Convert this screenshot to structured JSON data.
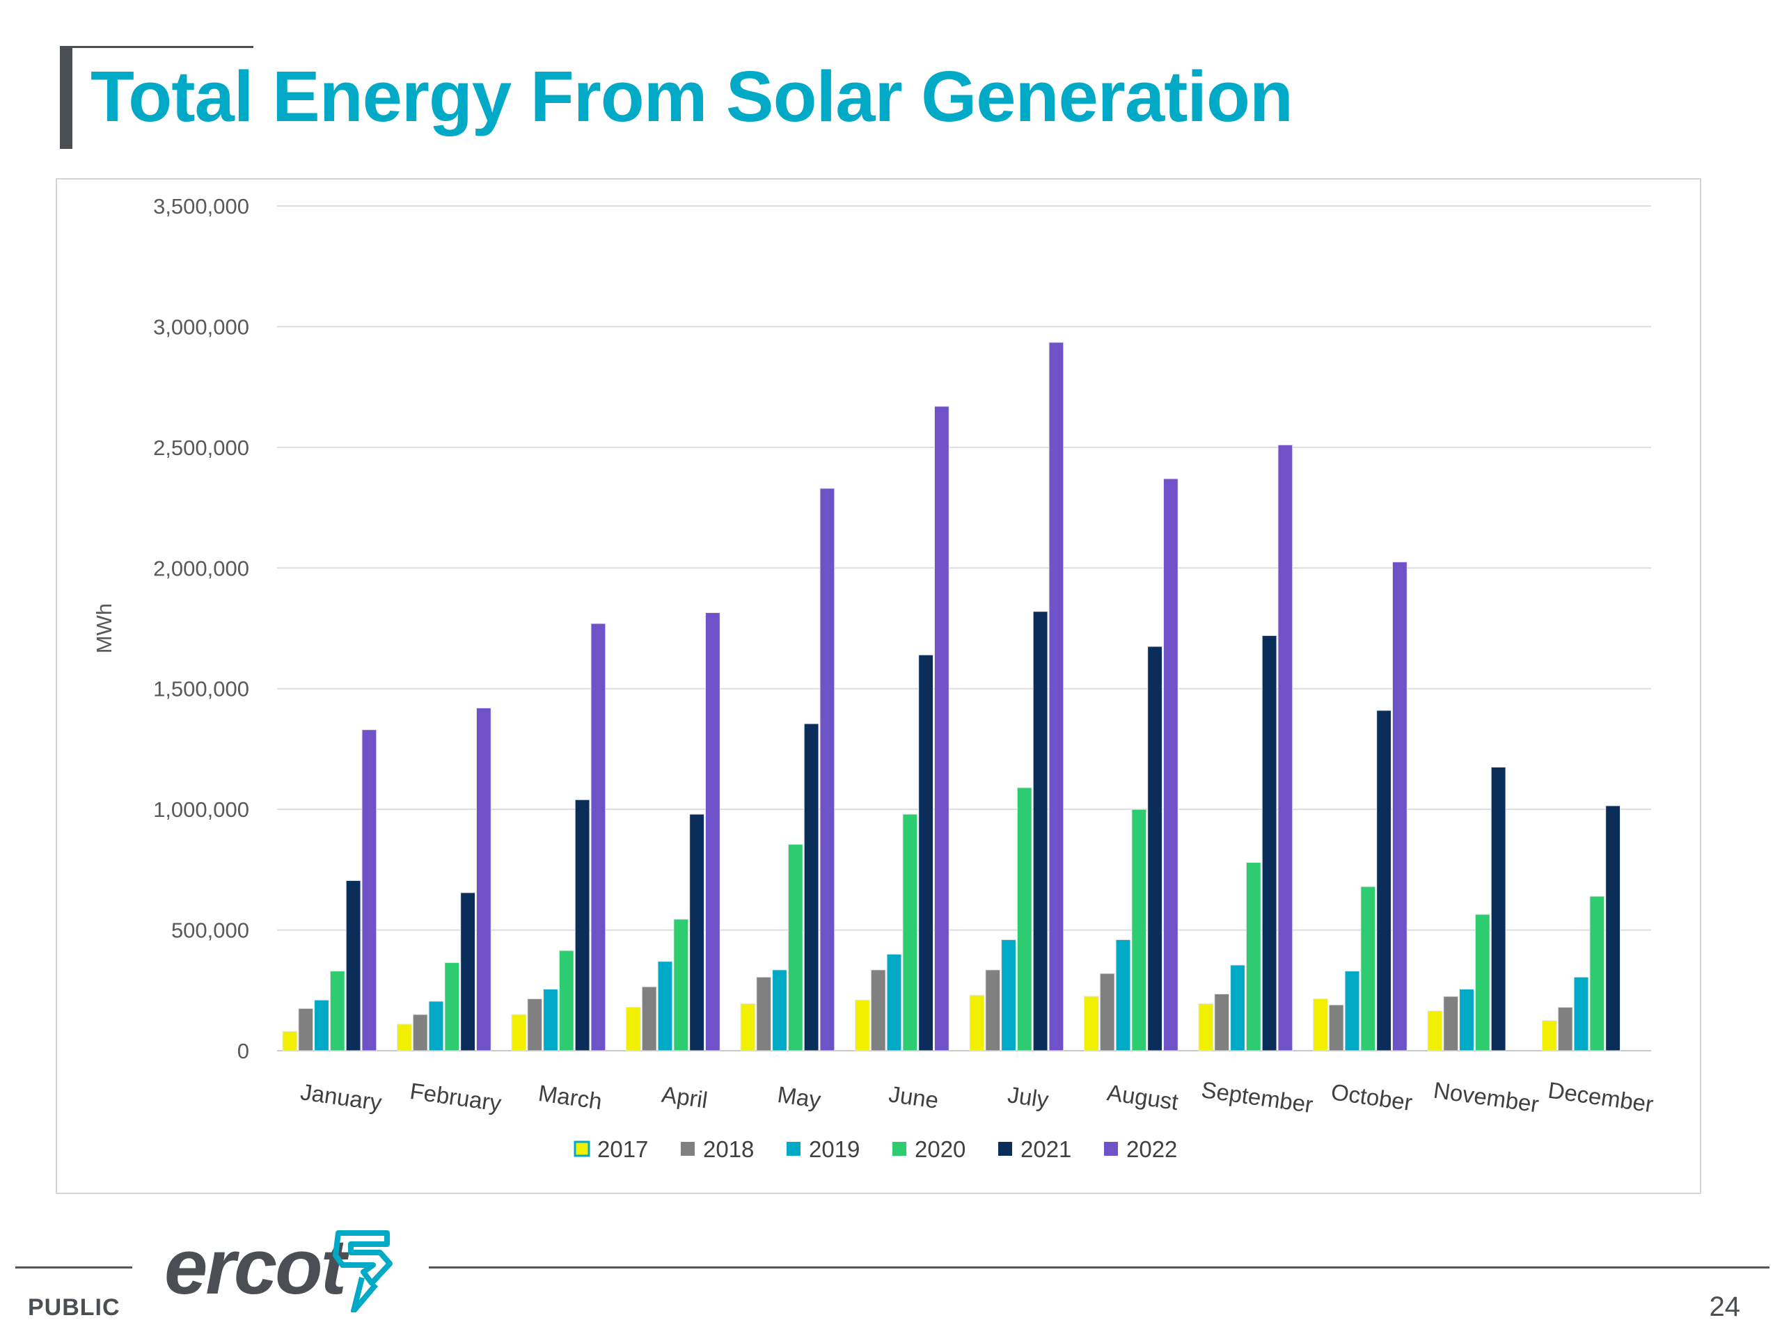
{
  "slide": {
    "title": "Total Energy From Solar Generation",
    "footer_label": "PUBLIC",
    "page_number": "24",
    "logo_text": "ercot"
  },
  "colors": {
    "title": "#00a9c6",
    "text": "#4b4f54",
    "logo_accent": "#00a9c6"
  },
  "chart_data": {
    "type": "bar",
    "title": "",
    "xlabel": "",
    "ylabel": "MWh",
    "ylim": [
      0,
      3500000
    ],
    "yticks": [
      0,
      500000,
      1000000,
      1500000,
      2000000,
      2500000,
      3000000,
      3500000
    ],
    "ytick_labels": [
      "0",
      "500,000",
      "1,000,000",
      "1,500,000",
      "2,000,000",
      "2,500,000",
      "3,000,000",
      "3,500,000"
    ],
    "grid": true,
    "legend_position": "bottom",
    "categories": [
      "January",
      "February",
      "March",
      "April",
      "May",
      "June",
      "July",
      "August",
      "September",
      "October",
      "November",
      "December"
    ],
    "series": [
      {
        "name": "2017",
        "color": "#f0f000",
        "values": [
          80000,
          110000,
          150000,
          180000,
          195000,
          210000,
          230000,
          225000,
          195000,
          215000,
          165000,
          125000
        ]
      },
      {
        "name": "2018",
        "color": "#808080",
        "values": [
          175000,
          150000,
          215000,
          265000,
          305000,
          335000,
          335000,
          320000,
          235000,
          190000,
          225000,
          180000
        ]
      },
      {
        "name": "2019",
        "color": "#00a9c6",
        "values": [
          210000,
          205000,
          255000,
          370000,
          335000,
          400000,
          460000,
          460000,
          355000,
          330000,
          255000,
          305000
        ]
      },
      {
        "name": "2020",
        "color": "#2ecc71",
        "values": [
          330000,
          365000,
          415000,
          545000,
          855000,
          980000,
          1090000,
          1000000,
          780000,
          680000,
          565000,
          640000
        ]
      },
      {
        "name": "2021",
        "color": "#0b2d5a",
        "values": [
          705000,
          655000,
          1040000,
          980000,
          1355000,
          1640000,
          1820000,
          1675000,
          1720000,
          1410000,
          1175000,
          1015000
        ]
      },
      {
        "name": "2022",
        "color": "#6f52c8",
        "values": [
          1330000,
          1420000,
          1770000,
          1815000,
          2330000,
          2670000,
          2935000,
          2370000,
          2510000,
          2025000,
          null,
          null
        ]
      }
    ]
  }
}
